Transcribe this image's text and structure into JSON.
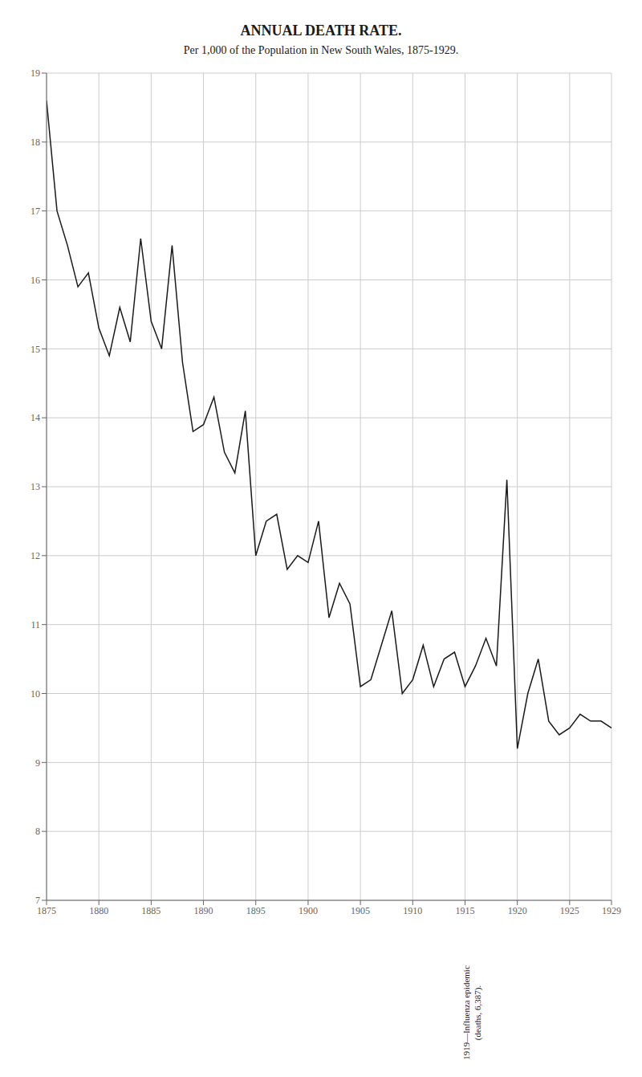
{
  "chart_data": {
    "type": "line",
    "title": "ANNUAL DEATH RATE.",
    "subtitle": "Per 1,000 of the Population in New South Wales, 1875-1929.",
    "annotation": "1919—Influenza epidemic\n(deaths, 6,387).",
    "x": [
      1875,
      1876,
      1877,
      1878,
      1879,
      1880,
      1881,
      1882,
      1883,
      1884,
      1885,
      1886,
      1887,
      1888,
      1889,
      1890,
      1891,
      1892,
      1893,
      1894,
      1895,
      1896,
      1897,
      1898,
      1899,
      1900,
      1901,
      1902,
      1903,
      1904,
      1905,
      1906,
      1907,
      1908,
      1909,
      1910,
      1911,
      1912,
      1913,
      1914,
      1915,
      1916,
      1917,
      1918,
      1919,
      1920,
      1921,
      1922,
      1923,
      1924,
      1925,
      1926,
      1927,
      1928,
      1929
    ],
    "values": [
      18.6,
      17.0,
      16.5,
      15.9,
      16.1,
      15.3,
      14.9,
      15.6,
      15.1,
      16.6,
      15.4,
      15.0,
      16.5,
      14.8,
      13.8,
      13.9,
      14.3,
      13.5,
      13.2,
      14.1,
      12.0,
      12.5,
      12.6,
      11.8,
      12.0,
      11.9,
      12.5,
      11.1,
      11.6,
      11.3,
      10.1,
      10.2,
      10.7,
      11.2,
      10.0,
      10.2,
      10.7,
      10.1,
      10.5,
      10.6,
      10.1,
      10.4,
      10.8,
      10.4,
      13.1,
      9.2,
      10.0,
      10.5,
      9.6,
      9.4,
      9.5,
      9.7,
      9.6,
      9.6,
      9.5
    ],
    "color": "#1a1a1a",
    "xlim": [
      1875,
      1929
    ],
    "ylim": [
      7,
      19
    ],
    "xticks": [
      1875,
      1880,
      1885,
      1890,
      1895,
      1900,
      1905,
      1910,
      1915,
      1920,
      1925,
      1929
    ],
    "yticks": [
      7,
      8,
      9,
      10,
      11,
      12,
      13,
      14,
      15,
      16,
      17,
      18,
      19
    ],
    "grid": true
  }
}
